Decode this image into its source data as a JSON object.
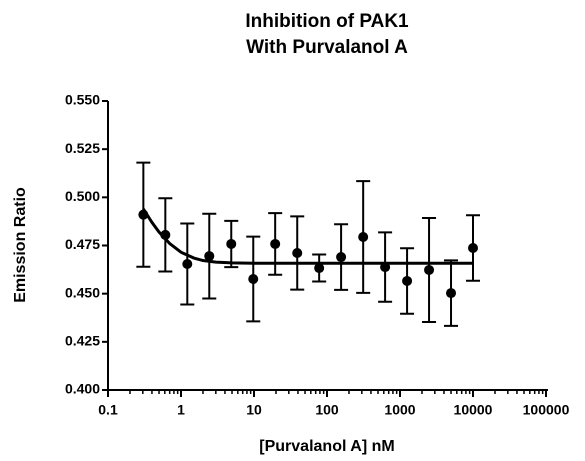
{
  "chart_data": {
    "type": "scatter",
    "title": [
      "Inhibition of PAK1",
      "With Purvalanol A"
    ],
    "x_label": "[Purvalanol A] nM",
    "y_label": "Emission  Ratio",
    "xscale": "log",
    "xlim": [
      0.1,
      100000
    ],
    "xticks": [
      0.1,
      1,
      10,
      100,
      1000,
      10000,
      100000
    ],
    "minor_ticks": true,
    "ylim": [
      0.4,
      0.55
    ],
    "yticks": [
      {
        "value": 0.4,
        "label": "0.400"
      },
      0.425,
      {
        "value": 0.45,
        "label": "0.450"
      },
      0.475,
      {
        "value": 0.5,
        "label": "0.500"
      },
      0.525,
      {
        "value": 0.55,
        "label": "0.550"
      }
    ],
    "color": "#000000",
    "x": [
      0.305,
      0.61,
      1.22,
      2.44,
      4.88,
      9.77,
      19.5,
      39.1,
      78.1,
      156,
      313,
      625,
      1250,
      2500,
      5000,
      10000
    ],
    "values": [
      0.491,
      0.4805,
      0.4654,
      0.4695,
      0.4758,
      0.4576,
      0.4758,
      0.4711,
      0.4633,
      0.469,
      0.4794,
      0.4638,
      0.4566,
      0.4623,
      0.4503,
      0.4737
    ],
    "errors": [
      0.027,
      0.019,
      0.021,
      0.022,
      0.012,
      0.022,
      0.016,
      0.019,
      0.007,
      0.017,
      0.029,
      0.018,
      0.017,
      0.027,
      0.017,
      0.017
    ],
    "fit": {
      "x": [
        0.305,
        0.4,
        0.5,
        0.7,
        1,
        1.5,
        2,
        3,
        5,
        10,
        100,
        10000
      ],
      "values": [
        0.494,
        0.487,
        0.482,
        0.476,
        0.4715,
        0.4685,
        0.4672,
        0.4664,
        0.466,
        0.4658,
        0.4658,
        0.4658
      ]
    }
  }
}
